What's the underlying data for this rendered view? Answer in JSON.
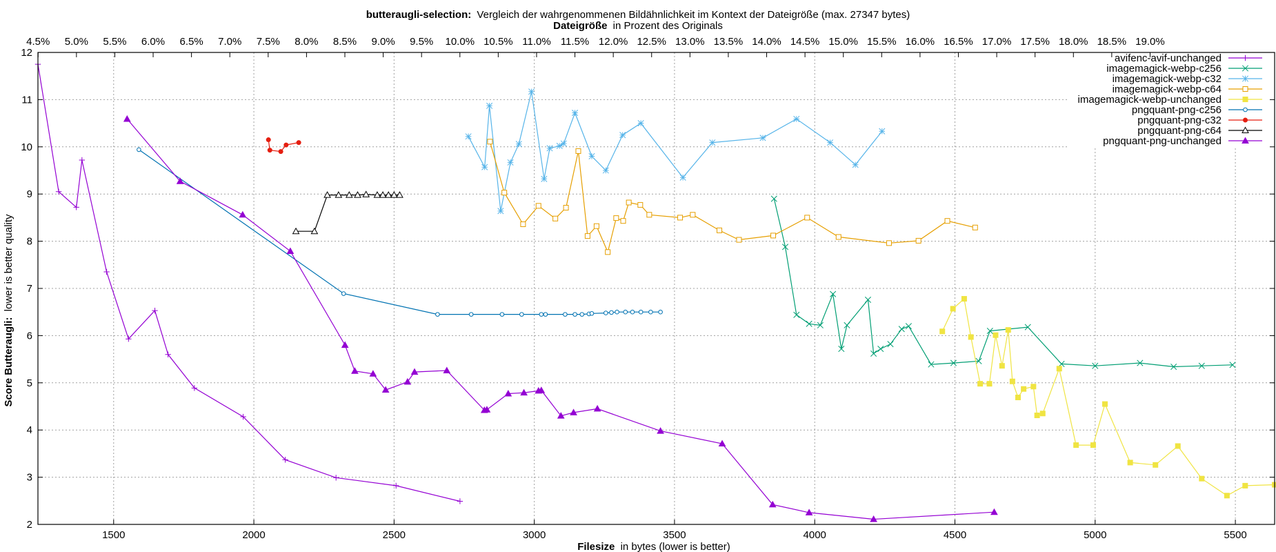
{
  "chart_data": {
    "type": "line",
    "title_bold": "butteraugli-selection:",
    "title_rest": "Vergleich der wahrgenommenen Bildähnlichkeit im Kontext der Dateigröße (max. 27347 bytes)",
    "x2label_bold": "Dateigröße",
    "x2label_rest": "in Prozent des Originals",
    "xlabel_bold": "Filesize",
    "xlabel_rest": "in bytes (lower is better)",
    "ylabel_bold": "Score Butteraugli:",
    "ylabel_rest": "lower is better quality",
    "xlim": [
      1230,
      5640
    ],
    "ylim": [
      2,
      12
    ],
    "grid": true,
    "legend_position": "top-right",
    "x_ticks": [
      1500,
      2000,
      2500,
      3000,
      3500,
      4000,
      4500,
      5000,
      5500
    ],
    "x_tick_labels": [
      "1500",
      "2000",
      "2500",
      "3000",
      "3500",
      "4000",
      "4500",
      "5000",
      "5500"
    ],
    "y_ticks": [
      2,
      3,
      4,
      5,
      6,
      7,
      8,
      9,
      10,
      11,
      12
    ],
    "y_tick_labels": [
      "2",
      "3",
      "4",
      "5",
      "6",
      "7",
      "8",
      "9",
      "10",
      "11",
      "12"
    ],
    "x2_ticks": [
      4.5,
      5.0,
      5.5,
      6.0,
      6.5,
      7.0,
      7.5,
      8.0,
      8.5,
      9.0,
      9.5,
      10.0,
      10.5,
      11.0,
      11.5,
      12.0,
      12.5,
      13.0,
      13.5,
      14.0,
      14.5,
      15.0,
      15.5,
      16.0,
      16.5,
      17.0,
      17.5,
      18.0,
      18.5,
      19.0
    ],
    "x2_tick_labels": [
      "4.5%",
      "5.0%",
      "5.5%",
      "6.0%",
      "6.5%",
      "7.0%",
      "7.5%",
      "8.0%",
      "8.5%",
      "9.0%",
      "9.5%",
      "10.0%",
      "10.5%",
      "11.0%",
      "11.5%",
      "12.0%",
      "12.5%",
      "13.0%",
      "13.5%",
      "14.0%",
      "14.5%",
      "15.0%",
      "15.5%",
      "16.0%",
      "16.5%",
      "17.0%",
      "17.5%",
      "18.0%",
      "18.5%",
      "19.0%"
    ],
    "x2_reference_bytes": 27347,
    "series": [
      {
        "name": "avifenc-avif-unchanged",
        "color": "#9400d3",
        "marker": "plus",
        "x": [
          1230,
          1304,
          1367,
          1387,
          1475,
          1553,
          1647,
          1694,
          1788,
          1962,
          2112,
          2293,
          2507,
          2735
        ],
        "y": [
          11.75,
          9.05,
          8.72,
          9.72,
          7.35,
          5.93,
          6.53,
          5.6,
          4.89,
          4.28,
          3.37,
          2.99,
          2.82,
          2.49
        ]
      },
      {
        "name": "imagemagick-webp-c256",
        "color": "#009e73",
        "marker": "cross",
        "x": [
          3855,
          3895,
          3935,
          3980,
          4020,
          4065,
          4095,
          4115,
          4190,
          4210,
          4235,
          4270,
          4310,
          4335,
          4415,
          4495,
          4585,
          4625,
          4760,
          4880,
          5000,
          5160,
          5280,
          5380,
          5490
        ],
        "y": [
          8.9,
          7.88,
          6.44,
          6.25,
          6.22,
          6.88,
          5.72,
          6.22,
          6.76,
          5.62,
          5.72,
          5.82,
          6.14,
          6.2,
          5.39,
          5.42,
          5.46,
          6.1,
          6.18,
          5.4,
          5.36,
          5.42,
          5.34,
          5.36,
          5.38
        ]
      },
      {
        "name": "imagemagick-webp-c32",
        "color": "#56b4e9",
        "marker": "star",
        "x": [
          2765,
          2823,
          2840,
          2880,
          2915,
          2945,
          2990,
          3035,
          3055,
          3090,
          3105,
          3145,
          3205,
          3255,
          3315,
          3380,
          3530,
          3635,
          3815,
          3935,
          4055,
          4145,
          4240
        ],
        "y": [
          10.22,
          9.57,
          10.87,
          8.64,
          9.67,
          10.06,
          11.17,
          9.32,
          9.97,
          10.02,
          10.07,
          10.72,
          9.8,
          9.5,
          10.25,
          10.5,
          9.35,
          10.09,
          10.19,
          10.59,
          10.09,
          9.62,
          10.33
        ]
      },
      {
        "name": "imagemagick-webp-c64",
        "color": "#e69f00",
        "marker": "square",
        "x": [
          2842,
          2893,
          2960,
          3015,
          3075,
          3113,
          3157,
          3190,
          3222,
          3262,
          3292,
          3317,
          3337,
          3378,
          3410,
          3520,
          3565,
          3660,
          3730,
          3852,
          3973,
          4085,
          4265,
          4370,
          4473,
          4572
        ],
        "y": [
          10.11,
          9.03,
          8.36,
          8.75,
          8.48,
          8.71,
          9.91,
          8.11,
          8.32,
          7.77,
          8.49,
          8.43,
          8.82,
          8.77,
          8.56,
          8.5,
          8.56,
          8.23,
          8.03,
          8.12,
          8.5,
          8.09,
          7.96,
          8.01,
          8.43,
          8.29
        ]
      },
      {
        "name": "imagemagick-webp-unchanged",
        "color": "#f0e442",
        "marker": "filled-square",
        "x": [
          4455,
          4493,
          4533,
          4557,
          4590,
          4623,
          4645,
          4668,
          4690,
          4705,
          4725,
          4745,
          4780,
          4793,
          4813,
          4872,
          4932,
          4993,
          5035,
          5125,
          5215,
          5295,
          5380,
          5470,
          5535,
          5640
        ],
        "y": [
          6.09,
          6.57,
          6.78,
          5.97,
          4.98,
          4.98,
          6.01,
          5.36,
          6.12,
          5.03,
          4.69,
          4.87,
          4.92,
          4.31,
          4.35,
          5.3,
          3.68,
          3.68,
          4.55,
          3.31,
          3.26,
          3.66,
          2.97,
          2.61,
          2.82,
          2.84
        ]
      },
      {
        "name": "pngquant-png-c256",
        "color": "#0072b2",
        "marker": "circle",
        "x": [
          1590,
          2320,
          2655,
          2775,
          2885,
          2955,
          3025,
          3040,
          3110,
          3145,
          3170,
          3195,
          3205,
          3255,
          3275,
          3295,
          3325,
          3350,
          3380,
          3415,
          3450
        ],
        "y": [
          9.94,
          6.89,
          6.45,
          6.45,
          6.45,
          6.45,
          6.45,
          6.45,
          6.45,
          6.45,
          6.45,
          6.46,
          6.47,
          6.48,
          6.49,
          6.5,
          6.5,
          6.5,
          6.5,
          6.5,
          6.5
        ]
      },
      {
        "name": "pngquant-png-c32",
        "color": "#e51e10",
        "marker": "filled-circle",
        "x": [
          2052,
          2057,
          2096,
          2115,
          2160
        ],
        "y": [
          10.15,
          9.93,
          9.9,
          10.04,
          10.09
        ]
      },
      {
        "name": "pngquant-png-c64",
        "color": "#000000",
        "marker": "triangle",
        "x": [
          2150,
          2216,
          2262,
          2302,
          2340,
          2370,
          2400,
          2440,
          2460,
          2480,
          2500,
          2520
        ],
        "y": [
          8.21,
          8.21,
          8.98,
          8.98,
          8.98,
          8.98,
          8.99,
          8.98,
          8.98,
          8.98,
          8.98,
          8.98
        ]
      },
      {
        "name": "pngquant-png-unchanged",
        "color": "#9400d3",
        "marker": "filled-triangle",
        "x": [
          1548,
          1737,
          1960,
          2130,
          2325,
          2360,
          2425,
          2470,
          2548,
          2573,
          2688,
          2822,
          2831,
          2907,
          2963,
          3015,
          3025,
          3095,
          3140,
          3225,
          3450,
          3670,
          3850,
          3980,
          4210,
          4640
        ],
        "y": [
          10.59,
          9.27,
          8.56,
          7.79,
          5.8,
          5.25,
          5.19,
          4.85,
          5.02,
          5.23,
          5.26,
          4.42,
          4.43,
          4.77,
          4.79,
          4.83,
          4.84,
          4.3,
          4.37,
          4.45,
          3.98,
          3.71,
          2.42,
          2.25,
          2.11,
          2.26
        ]
      }
    ]
  }
}
